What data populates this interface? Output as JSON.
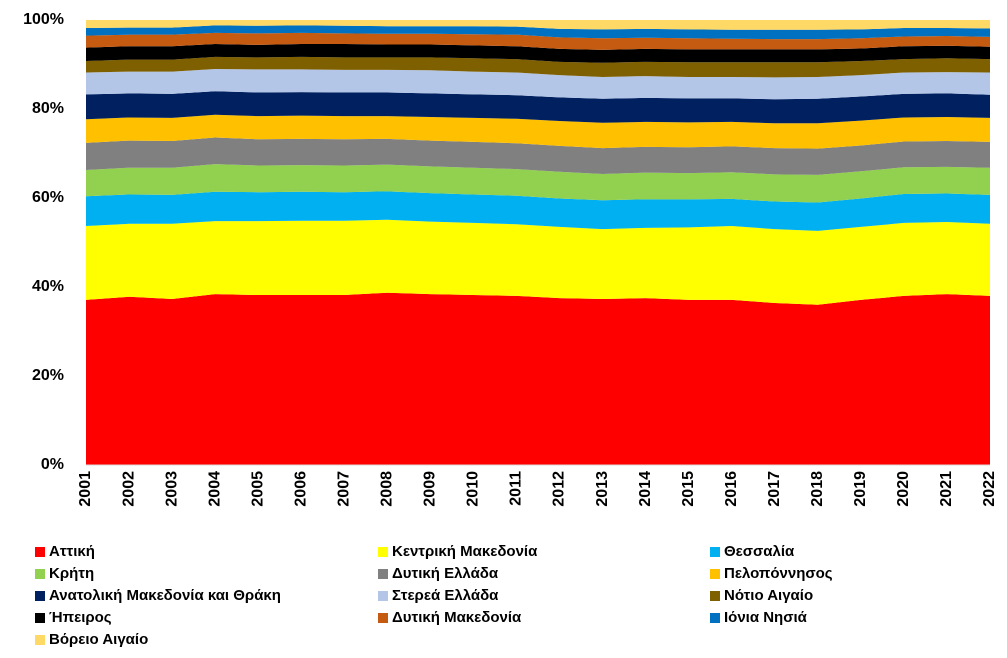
{
  "chart_data": {
    "type": "stacked_area",
    "categories": [
      "2001",
      "2002",
      "2003",
      "2004",
      "2005",
      "2006",
      "2007",
      "2008",
      "2009",
      "2010",
      "2011",
      "2012",
      "2013",
      "2014",
      "2015",
      "2016",
      "2017",
      "2018",
      "2019",
      "2020",
      "2021",
      "2022"
    ],
    "ylim": [
      0,
      100
    ],
    "yticks": [
      {
        "value": 0,
        "label": "0%"
      },
      {
        "value": 20,
        "label": "20%"
      },
      {
        "value": 40,
        "label": "40%"
      },
      {
        "value": 60,
        "label": "60%"
      },
      {
        "value": 80,
        "label": "80%"
      },
      {
        "value": 100,
        "label": "100%"
      }
    ],
    "grid": false,
    "series": [
      {
        "name": "Αττική",
        "color": "#ff0000",
        "values": [
          37.1,
          37.8,
          37.3,
          38.4,
          38.2,
          38.2,
          38.2,
          38.7,
          38.4,
          38.2,
          38.0,
          37.5,
          37.3,
          37.5,
          37.1,
          37.1,
          36.4,
          36.0,
          37.1,
          38.0,
          38.4,
          38.0
        ]
      },
      {
        "name": "Κεντρική Μακεδονία",
        "color": "#ffff00",
        "values": [
          16.6,
          16.4,
          16.9,
          16.4,
          16.6,
          16.7,
          16.7,
          16.4,
          16.3,
          16.2,
          16.1,
          16.0,
          15.7,
          15.8,
          16.3,
          16.6,
          16.6,
          16.6,
          16.4,
          16.4,
          16.2,
          16.2
        ]
      },
      {
        "name": "Θεσσαλία",
        "color": "#00b0f0",
        "values": [
          6.7,
          6.6,
          6.5,
          6.6,
          6.5,
          6.5,
          6.4,
          6.4,
          6.4,
          6.4,
          6.4,
          6.4,
          6.5,
          6.4,
          6.3,
          6.1,
          6.2,
          6.4,
          6.4,
          6.5,
          6.4,
          6.5
        ]
      },
      {
        "name": "Κρήτη",
        "color": "#92d050",
        "values": [
          5.9,
          6.0,
          6.1,
          6.2,
          6.0,
          6.0,
          6.0,
          6.0,
          6.0,
          6.0,
          6.0,
          6.0,
          5.9,
          6.0,
          5.9,
          6.0,
          6.1,
          6.2,
          6.1,
          6.0,
          6.0,
          6.1
        ]
      },
      {
        "name": "Δυτική Ελλάδα",
        "color": "#808080",
        "values": [
          6.1,
          6.1,
          6.0,
          6.0,
          5.9,
          5.9,
          5.9,
          5.8,
          5.8,
          5.8,
          5.8,
          5.8,
          5.8,
          5.8,
          5.8,
          5.8,
          5.9,
          5.9,
          5.8,
          5.8,
          5.8,
          5.8
        ]
      },
      {
        "name": "Πελοπόννησος",
        "color": "#ffc000",
        "values": [
          5.3,
          5.2,
          5.2,
          5.1,
          5.2,
          5.2,
          5.2,
          5.1,
          5.3,
          5.4,
          5.5,
          5.6,
          5.7,
          5.6,
          5.6,
          5.5,
          5.6,
          5.7,
          5.6,
          5.4,
          5.4,
          5.4
        ]
      },
      {
        "name": "Ανατολική Μακεδονία και Θράκη",
        "color": "#002060",
        "values": [
          5.6,
          5.4,
          5.4,
          5.3,
          5.3,
          5.3,
          5.3,
          5.3,
          5.3,
          5.3,
          5.3,
          5.3,
          5.4,
          5.4,
          5.4,
          5.3,
          5.4,
          5.5,
          5.4,
          5.3,
          5.3,
          5.2
        ]
      },
      {
        "name": "Στερεά Ελλάδα",
        "color": "#b4c6e7",
        "values": [
          4.9,
          4.9,
          5.0,
          5.0,
          5.2,
          5.1,
          5.1,
          5.1,
          5.2,
          5.1,
          5.1,
          5.0,
          4.9,
          4.9,
          4.8,
          4.8,
          4.9,
          4.9,
          4.8,
          4.8,
          4.8,
          5.0
        ]
      },
      {
        "name": "Νότιο Αιγαίο",
        "color": "#7f6000",
        "values": [
          2.6,
          2.7,
          2.7,
          2.7,
          2.7,
          2.8,
          2.8,
          2.8,
          2.9,
          3.0,
          3.0,
          3.0,
          3.2,
          3.2,
          3.3,
          3.3,
          3.4,
          3.3,
          3.2,
          3.0,
          3.1,
          3.0
        ]
      },
      {
        "name": "Ήπειρος",
        "color": "#000000",
        "values": [
          3.0,
          3.0,
          3.0,
          2.9,
          2.8,
          2.9,
          3.0,
          2.9,
          2.9,
          2.9,
          2.9,
          2.9,
          2.9,
          2.9,
          2.9,
          2.9,
          2.9,
          2.9,
          2.8,
          2.9,
          2.8,
          2.8
        ]
      },
      {
        "name": "Δυτική Μακεδονία",
        "color": "#c55a11",
        "values": [
          2.7,
          2.6,
          2.6,
          2.5,
          2.6,
          2.5,
          2.4,
          2.4,
          2.4,
          2.5,
          2.6,
          2.6,
          2.6,
          2.5,
          2.5,
          2.4,
          2.3,
          2.3,
          2.3,
          2.2,
          2.2,
          2.2
        ]
      },
      {
        "name": "Ιόνια Νησιά",
        "color": "#0070c0",
        "values": [
          1.7,
          1.6,
          1.6,
          1.7,
          1.7,
          1.7,
          1.7,
          1.7,
          1.7,
          1.8,
          1.8,
          1.9,
          2.0,
          2.0,
          2.0,
          2.0,
          2.1,
          2.1,
          2.0,
          1.9,
          1.8,
          1.9
        ]
      },
      {
        "name": "Βόρειο Αιγαίο",
        "color": "#ffd966",
        "values": [
          1.8,
          1.7,
          1.7,
          1.2,
          1.3,
          1.2,
          1.3,
          1.4,
          1.4,
          1.4,
          1.5,
          2.0,
          2.1,
          2.0,
          2.1,
          2.2,
          2.2,
          2.2,
          2.1,
          1.8,
          1.8,
          1.9
        ]
      }
    ]
  }
}
